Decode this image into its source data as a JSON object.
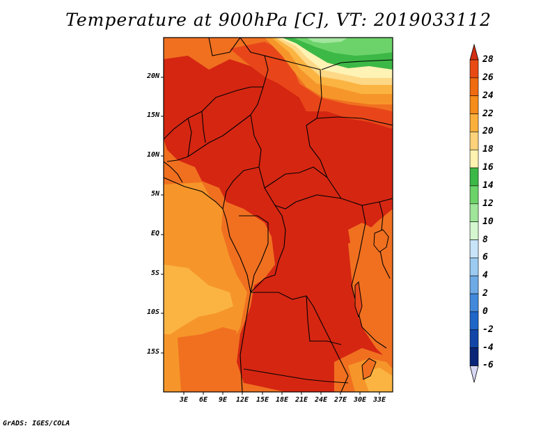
{
  "title": "Temperature at 900hPa [C], VT: 2019033112",
  "footer": "GrADS: IGES/COLA",
  "lat_ticks": [
    "20N",
    "15N",
    "10N",
    "5N",
    "EQ",
    "5S",
    "10S",
    "15S"
  ],
  "lon_ticks": [
    "3E",
    "6E",
    "9E",
    "12E",
    "15E",
    "18E",
    "21E",
    "24E",
    "27E",
    "30E",
    "33E"
  ],
  "colorbar": {
    "labels": [
      "28",
      "26",
      "24",
      "22",
      "20",
      "18",
      "16",
      "14",
      "12",
      "10",
      "8",
      "6",
      "4",
      "2",
      "0",
      "-2",
      "-4",
      "-6"
    ],
    "colors": [
      "#d7301f",
      "#e84a12",
      "#f06a10",
      "#f68c1a",
      "#fbb03b",
      "#fdd27a",
      "#fdf2b0",
      "#3cb846",
      "#6cd36a",
      "#9fe59a",
      "#d4f7cf",
      "#c8e4f8",
      "#9ccaf0",
      "#6eaae6",
      "#4289dc",
      "#1f66c9",
      "#1146a8",
      "#0a2478",
      "#000a5a"
    ],
    "top_color": "#d32f12",
    "bottom_color": "#d8d8f4"
  },
  "map_colors": {
    "c28": "#d52612",
    "c26": "#e8461a",
    "c24": "#f07020",
    "c22": "#f6962a",
    "c20": "#fbb442",
    "c18": "#fdd886",
    "c16": "#fef2b4",
    "c14": "#3cb846",
    "c12": "#6cd36a",
    "c10": "#a2e69e"
  }
}
